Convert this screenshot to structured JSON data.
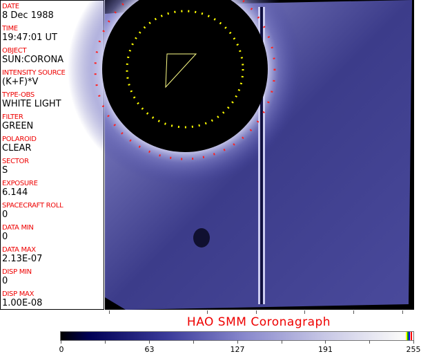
{
  "fields": [
    {
      "label": "DATE",
      "value": "8 Dec 1988"
    },
    {
      "label": "TIME",
      "value": "19:47:01 UT"
    },
    {
      "label": "OBJECT",
      "value": "SUN:CORONA"
    },
    {
      "label": "INTENSITY SOURCE",
      "value": "(K+F)*V"
    },
    {
      "label": "TYPE-OBS",
      "value": "WHITE LIGHT"
    },
    {
      "label": "FILTER",
      "value": "GREEN"
    },
    {
      "label": "POLAROID",
      "value": "CLEAR"
    },
    {
      "label": "SECTOR",
      "value": "S"
    },
    {
      "label": "EXPOSURE",
      "value": "6.144"
    },
    {
      "label": "SPACECRAFT ROLL",
      "value": "0"
    },
    {
      "label": "DATA MIN",
      "value": "0"
    },
    {
      "label": "DATA MAX",
      "value": "2.13E-07"
    },
    {
      "label": "DISP MIN",
      "value": "0"
    },
    {
      "label": "DISP MAX",
      "value": "1.00E-08"
    }
  ],
  "title": "HAO  SMM Coronagraph",
  "colorbar": {
    "ticks": [
      "0",
      "63",
      "127",
      "191",
      "255"
    ],
    "colormap": "black-blue-white",
    "indicator_colors": [
      "#ffff00",
      "#00aa00",
      "#0000ff",
      "#ff0000"
    ]
  }
}
